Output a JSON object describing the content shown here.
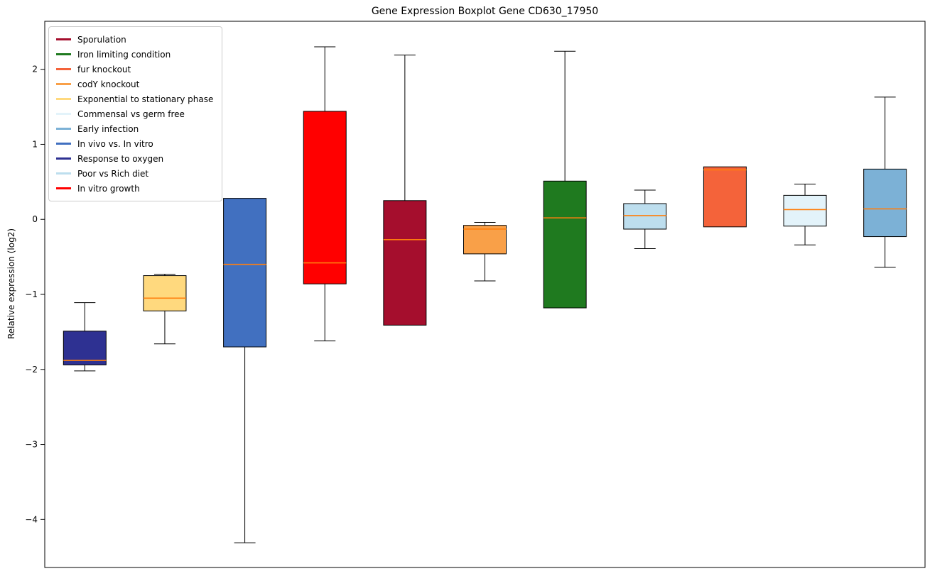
{
  "title": "Gene Expression Boxplot Gene CD630_17950",
  "chart_data": {
    "type": "boxplot",
    "title": "Gene Expression Boxplot Gene CD630_17950",
    "xlabel": "",
    "ylabel": "Relative expression (log2)",
    "ylim": [
      -4.64,
      2.64
    ],
    "yticks": [
      2,
      1,
      0,
      -1,
      -2,
      -3,
      -4
    ],
    "grid": false,
    "legend_position": "upper left",
    "median_color": "#ff7f0e",
    "box_edge_color": "#000000",
    "whisker_color": "#000000",
    "legend": [
      {
        "label": "Sporulation",
        "color": "#a50e2d"
      },
      {
        "label": "Iron limiting condition",
        "color": "#1f7a1f"
      },
      {
        "label": "fur knockout",
        "color": "#f4633a"
      },
      {
        "label": "codY knockout",
        "color": "#f9a048"
      },
      {
        "label": "Exponential to stationary phase",
        "color": "#ffd97e"
      },
      {
        "label": "Commensal vs germ free",
        "color": "#e3f3fa"
      },
      {
        "label": "Early infection",
        "color": "#7cb1d6"
      },
      {
        "label": "In vivo vs. In vitro",
        "color": "#4170c0"
      },
      {
        "label": "Response to oxygen",
        "color": "#2e3192"
      },
      {
        "label": "Poor vs Rich diet",
        "color": "#bddeee"
      },
      {
        "label": "In vitro growth",
        "color": "#ff0000"
      }
    ],
    "series": [
      {
        "name": "Response to oxygen",
        "color": "#2e3192",
        "whisker_low": -2.02,
        "q1": -1.94,
        "median": -1.88,
        "q3": -1.49,
        "whisker_high": -1.11
      },
      {
        "name": "Exponential to stationary phase",
        "color": "#ffd97e",
        "whisker_low": -1.66,
        "q1": -1.22,
        "median": -1.05,
        "q3": -0.75,
        "whisker_high": -0.73
      },
      {
        "name": "In vivo vs. In vitro",
        "color": "#4170c0",
        "whisker_low": -4.31,
        "q1": -1.7,
        "median": -0.6,
        "q3": 0.28,
        "whisker_high": 0.28
      },
      {
        "name": "In vitro growth",
        "color": "#ff0000",
        "whisker_low": -1.62,
        "q1": -0.86,
        "median": -0.58,
        "q3": 1.44,
        "whisker_high": 2.3
      },
      {
        "name": "Sporulation",
        "color": "#a50e2d",
        "whisker_low": -1.41,
        "q1": -1.41,
        "median": -0.27,
        "q3": 0.25,
        "whisker_high": 2.19
      },
      {
        "name": "codY knockout",
        "color": "#f9a048",
        "whisker_low": -0.82,
        "q1": -0.46,
        "median": -0.13,
        "q3": -0.08,
        "whisker_high": -0.04
      },
      {
        "name": "Iron limiting condition",
        "color": "#1f7a1f",
        "whisker_low": -1.18,
        "q1": -1.18,
        "median": 0.02,
        "q3": 0.51,
        "whisker_high": 2.24
      },
      {
        "name": "Poor vs Rich diet",
        "color": "#bddeee",
        "whisker_low": -0.39,
        "q1": -0.13,
        "median": 0.05,
        "q3": 0.21,
        "whisker_high": 0.39
      },
      {
        "name": "fur knockout",
        "color": "#f4633a",
        "whisker_low": -0.1,
        "q1": -0.1,
        "median": 0.66,
        "q3": 0.7,
        "whisker_high": 0.7
      },
      {
        "name": "Commensal vs germ free",
        "color": "#e3f3fa",
        "whisker_low": -0.34,
        "q1": -0.09,
        "median": 0.13,
        "q3": 0.32,
        "whisker_high": 0.47
      },
      {
        "name": "Early infection",
        "color": "#7cb1d6",
        "whisker_low": -0.64,
        "q1": -0.23,
        "median": 0.14,
        "q3": 0.67,
        "whisker_high": 1.63
      }
    ]
  }
}
